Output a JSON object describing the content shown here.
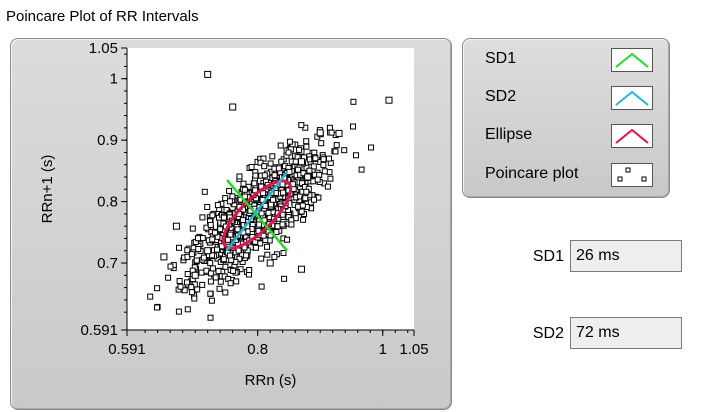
{
  "title": "Poincare Plot of RR Intervals",
  "chart_data": {
    "type": "scatter",
    "xlabel": "RRn (s)",
    "ylabel": "RRn+1 (s)",
    "xlim": [
      0.591,
      1.05
    ],
    "ylim": [
      0.591,
      1.05
    ],
    "x_ticks": [
      "0.591",
      "0.8",
      "1",
      "1.05"
    ],
    "y_ticks": [
      "1.05",
      "1",
      "0.9",
      "0.8",
      "0.7",
      "0.591"
    ],
    "series": [
      {
        "name": "SD1",
        "color": "#22dd22",
        "line": {
          "x1": 0.751,
          "y1": 0.835,
          "x2": 0.847,
          "y2": 0.72
        }
      },
      {
        "name": "SD2",
        "color": "#22b8d8",
        "line": {
          "x1": 0.75,
          "y1": 0.72,
          "x2": 0.847,
          "y2": 0.848
        }
      },
      {
        "name": "Ellipse",
        "color": "#e8104a",
        "center": [
          0.799,
          0.779
        ],
        "sd1": 0.026,
        "sd2": 0.072
      },
      {
        "name": "Poincare plot",
        "color": "#000000",
        "outliers": [
          [
            0.72,
            1.007
          ],
          [
            0.76,
            0.954
          ],
          [
            0.9,
            0.912
          ],
          [
            0.93,
            0.911
          ],
          [
            1.01,
            0.965
          ],
          [
            0.87,
            0.865
          ],
          [
            0.88,
            0.84
          ],
          [
            0.72,
            0.72
          ],
          [
            0.7,
            0.68
          ],
          [
            0.87,
            0.69
          ],
          [
            0.82,
            0.7
          ],
          [
            0.67,
            0.76
          ],
          [
            0.65,
            0.71
          ]
        ]
      }
    ]
  },
  "legend": {
    "items": [
      {
        "label": "SD1",
        "color": "#22dd22",
        "icon": "line-icon"
      },
      {
        "label": "SD2",
        "color": "#22b8d8",
        "icon": "line-icon"
      },
      {
        "label": "Ellipse",
        "color": "#e8104a",
        "icon": "line-icon"
      },
      {
        "label": "Poincare plot",
        "color": "#000000",
        "icon": "scatter-icon"
      }
    ]
  },
  "indicators": {
    "sd1": {
      "label": "SD1",
      "value": "26 ms"
    },
    "sd2": {
      "label": "SD2",
      "value": "72 ms"
    }
  }
}
